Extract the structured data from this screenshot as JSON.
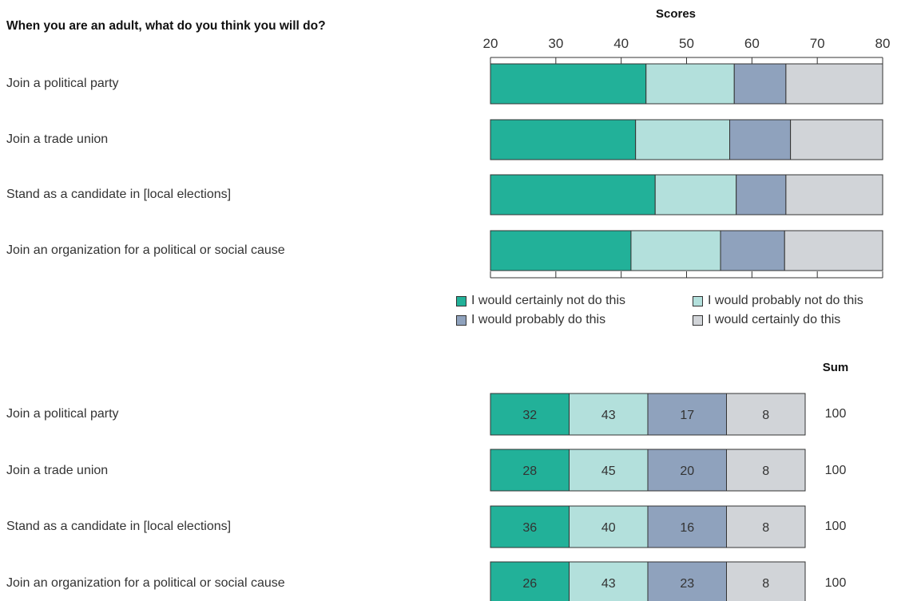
{
  "question": "When you are an adult, what do you think you will do?",
  "sum_title": "Sum",
  "rows": [
    {
      "label": "Join a political party",
      "sum": "100"
    },
    {
      "label": "Join a trade union",
      "sum": "100"
    },
    {
      "label": "Stand as a candidate in [local elections]",
      "sum": "100"
    },
    {
      "label": "Join an organization for a political or social cause",
      "sum": "100"
    }
  ],
  "legend": [
    {
      "label": "I would certainly not do this",
      "color": "#22b199"
    },
    {
      "label": "I would probably not do this",
      "color": "#b3e0dc"
    },
    {
      "label": "I would probably do this",
      "color": "#8fa2bd"
    },
    {
      "label": "I would certainly do this",
      "color": "#d1d4d8"
    }
  ],
  "chart_data": [
    {
      "type": "bar",
      "orientation": "horizontal",
      "stacked": true,
      "title": "Scores",
      "xlim": [
        20,
        80
      ],
      "xticks": [
        20,
        30,
        40,
        50,
        60,
        70,
        80
      ],
      "categories": [
        "Join a political party",
        "Join a trade union",
        "Stand as a candidate in [local elections]",
        "Join an organization for a political or social cause"
      ],
      "series": [
        {
          "name": "I would certainly not do this",
          "start": [
            20,
            20,
            20,
            20
          ],
          "end": [
            43.8,
            42.2,
            45.2,
            41.5
          ]
        },
        {
          "name": "I would probably not do this",
          "start": [
            43.8,
            42.2,
            45.2,
            41.5
          ],
          "end": [
            57.3,
            56.6,
            57.6,
            55.2
          ]
        },
        {
          "name": "I would probably do this",
          "start": [
            57.3,
            56.6,
            57.6,
            55.2
          ],
          "end": [
            65.2,
            65.9,
            65.2,
            65.0
          ]
        },
        {
          "name": "I would certainly do this",
          "start": [
            65.2,
            65.9,
            65.2,
            65.0
          ],
          "end": [
            80,
            80,
            80,
            80
          ]
        }
      ],
      "legend_position": "bottom"
    },
    {
      "type": "table",
      "columns": [
        "I would certainly not do this",
        "I would probably not do this",
        "I would probably do this",
        "I would certainly do this"
      ],
      "categories": [
        "Join a political party",
        "Join a trade union",
        "Stand as a candidate in [local elections]",
        "Join an organization for a political or social cause"
      ],
      "values": [
        [
          32,
          43,
          17,
          8
        ],
        [
          28,
          45,
          20,
          8
        ],
        [
          36,
          40,
          16,
          8
        ],
        [
          26,
          43,
          23,
          8
        ]
      ],
      "sum": [
        100,
        100,
        100,
        100
      ]
    }
  ]
}
